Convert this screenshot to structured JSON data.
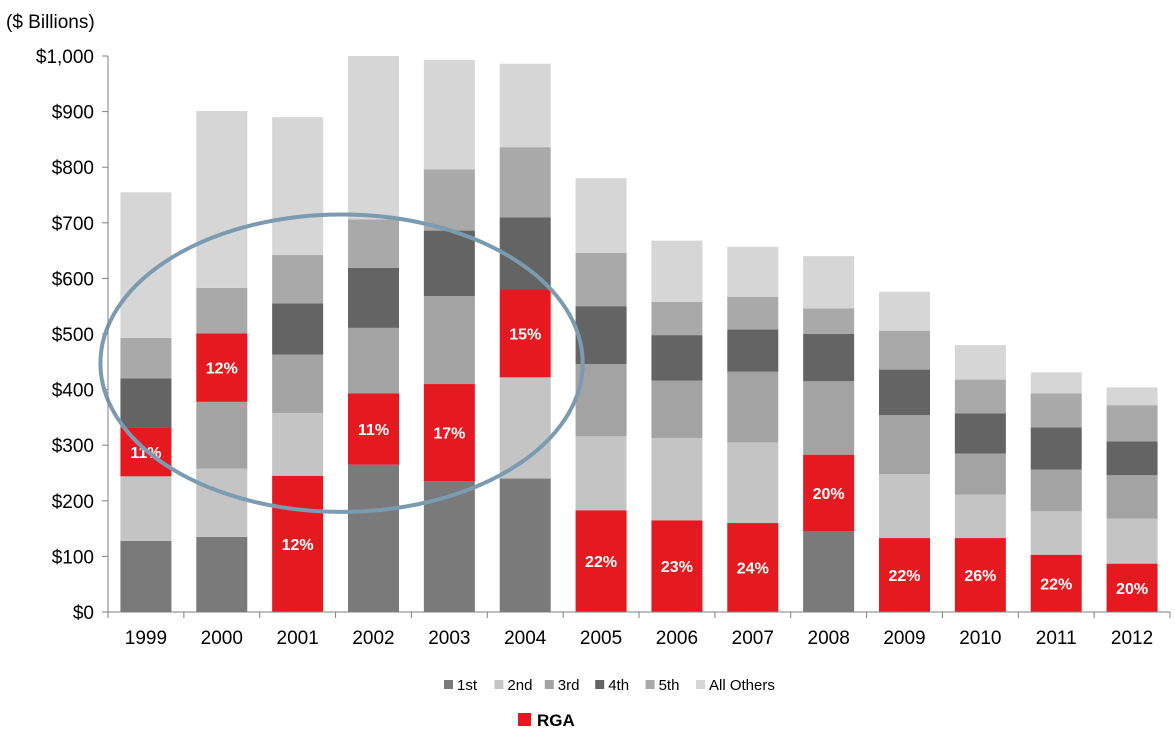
{
  "chart_data": {
    "type": "bar",
    "stacked": true,
    "ylabel": "($ Billions)",
    "ylim": [
      0,
      1000
    ],
    "yticks": [
      "$0",
      "$100",
      "$200",
      "$300",
      "$400",
      "$500",
      "$600",
      "$700",
      "$800",
      "$900",
      "$1,000"
    ],
    "categories": [
      "1999",
      "2000",
      "2001",
      "2002",
      "2003",
      "2004",
      "2005",
      "2006",
      "2007",
      "2008",
      "2009",
      "2010",
      "2011",
      "2012"
    ],
    "stack_order": [
      "1st",
      "2nd",
      "3rd",
      "4th",
      "5th",
      "All Others"
    ],
    "rga_rank": [
      3,
      4,
      1,
      2,
      2,
      3,
      1,
      1,
      1,
      2,
      1,
      1,
      1,
      1
    ],
    "series": [
      {
        "name": "1st",
        "color": "#7a7a7a",
        "values": [
          128,
          135,
          245,
          265,
          235,
          240,
          183,
          165,
          160,
          145,
          133,
          133,
          103,
          87
        ]
      },
      {
        "name": "2nd",
        "color": "#c4c4c4",
        "values": [
          116,
          123,
          113,
          128,
          175,
          182,
          133,
          148,
          145,
          138,
          115,
          78,
          78,
          81
        ]
      },
      {
        "name": "3rd",
        "color": "#a3a3a3",
        "values": [
          88,
          120,
          105,
          118,
          158,
          158,
          130,
          103,
          127,
          132,
          106,
          74,
          75,
          78
        ]
      },
      {
        "name": "4th",
        "color": "#646464",
        "values": [
          88,
          123,
          92,
          108,
          118,
          130,
          104,
          82,
          76,
          85,
          82,
          72,
          76,
          61
        ]
      },
      {
        "name": "5th",
        "color": "#a9a9a9",
        "values": [
          73,
          82,
          87,
          87,
          110,
          126,
          96,
          60,
          59,
          46,
          70,
          61,
          61,
          65
        ]
      },
      {
        "name": "All Others",
        "color": "#d6d6d6",
        "values": [
          262,
          318,
          248,
          294,
          197,
          150,
          134,
          110,
          90,
          94,
          70,
          62,
          38,
          32
        ]
      }
    ],
    "rga": {
      "name": "RGA",
      "color": "#e51a20",
      "labels": [
        "11%",
        "12%",
        "12%",
        "11%",
        "17%",
        "15%",
        "22%",
        "23%",
        "24%",
        "20%",
        "22%",
        "26%",
        "22%",
        "20%"
      ]
    },
    "legend": {
      "placement": "bottom-center",
      "entries": [
        "1st",
        "2nd",
        "3rd",
        "4th",
        "5th",
        "All Others"
      ],
      "highlight_entry": "RGA"
    },
    "annotation": {
      "type": "ellipse",
      "color": "#7b9bb0",
      "span_categories": [
        "1999",
        "2004"
      ],
      "y_range": [
        180,
        715
      ]
    }
  }
}
